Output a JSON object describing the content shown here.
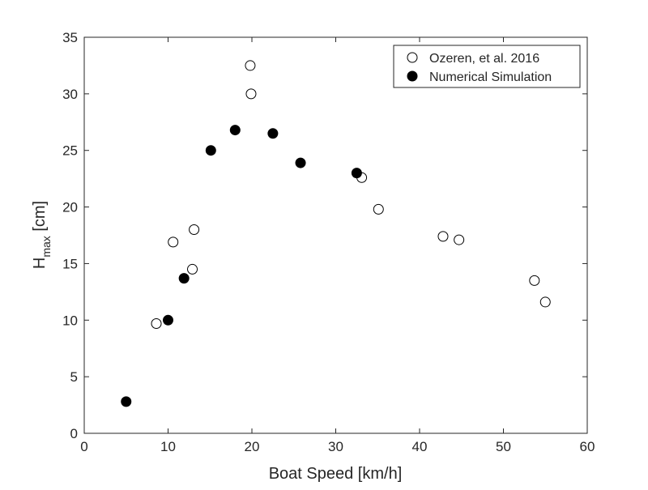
{
  "chart_data": {
    "type": "scatter",
    "title": "",
    "xlabel": "Boat Speed [km/h]",
    "ylabel": {
      "main": "H",
      "sub": "max",
      "suffix": " [cm]"
    },
    "xlim": [
      0,
      60
    ],
    "ylim": [
      0,
      35
    ],
    "xticks": [
      0,
      10,
      20,
      30,
      40,
      50,
      60
    ],
    "yticks": [
      0,
      5,
      10,
      15,
      20,
      25,
      30,
      35
    ],
    "grid": false,
    "box": true,
    "legend_position": "top-right",
    "series": [
      {
        "name": "Ozeren, et al. 2016",
        "marker": "open-circle",
        "color": "#000000",
        "points": [
          [
            8.6,
            9.7
          ],
          [
            10.6,
            16.9
          ],
          [
            12.9,
            14.5
          ],
          [
            13.1,
            18.0
          ],
          [
            19.8,
            32.5
          ],
          [
            19.9,
            30.0
          ],
          [
            33.1,
            22.6
          ],
          [
            35.1,
            19.8
          ],
          [
            42.8,
            17.4
          ],
          [
            44.7,
            17.1
          ],
          [
            53.7,
            13.5
          ],
          [
            55.0,
            11.6
          ]
        ]
      },
      {
        "name": "Numerical Simulation",
        "marker": "filled-circle",
        "color": "#000000",
        "points": [
          [
            5.0,
            2.8
          ],
          [
            10.0,
            10.0
          ],
          [
            11.9,
            13.7
          ],
          [
            15.1,
            25.0
          ],
          [
            18.0,
            26.8
          ],
          [
            22.5,
            26.5
          ],
          [
            25.8,
            23.9
          ],
          [
            32.5,
            23.0
          ]
        ]
      }
    ]
  }
}
